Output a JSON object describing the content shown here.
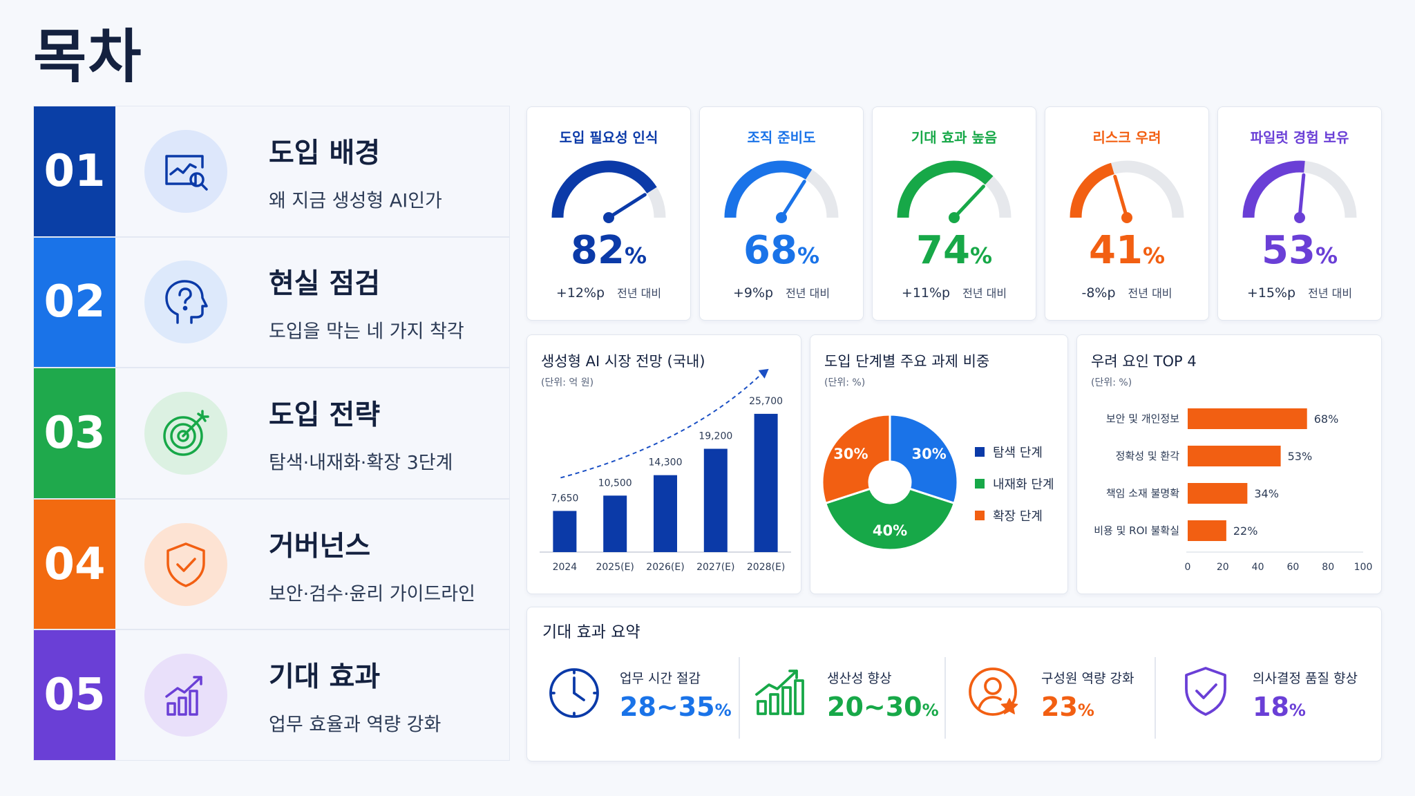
{
  "page": {
    "title": "목차"
  },
  "toc": [
    {
      "num": "01",
      "title": "도입 배경",
      "subtitle": "왜 지금 생성형 AI인가",
      "color": "#0a3fa6",
      "icon": "chart-search-icon"
    },
    {
      "num": "02",
      "title": "현실 점검",
      "subtitle": "도입을 막는 네 가지 착각",
      "color": "#1a73e8",
      "icon": "head-question-icon"
    },
    {
      "num": "03",
      "title": "도입 전략",
      "subtitle": "탐색·내재화·확장 3단계",
      "color": "#1fa94c",
      "icon": "target-icon"
    },
    {
      "num": "04",
      "title": "거버넌스",
      "subtitle": "보안·검수·윤리 가이드라인",
      "color": "#f26a10",
      "icon": "shield-check-icon"
    },
    {
      "num": "05",
      "title": "기대 효과",
      "subtitle": "업무 효율과 역량 강화",
      "color": "#6a3fd6",
      "icon": "growth-chart-icon"
    }
  ],
  "kpis": [
    {
      "label": "도입 필요성 인식",
      "value": "82",
      "unit": "%",
      "delta": "+12%p",
      "compare": "전년 대비",
      "color": "#0b3aa8",
      "level": 0.82
    },
    {
      "label": "조직 준비도",
      "value": "68",
      "unit": "%",
      "delta": "+9%p",
      "compare": "전년 대비",
      "color": "#1a73e8",
      "level": 0.68
    },
    {
      "label": "기대 효과 높음",
      "value": "74",
      "unit": "%",
      "delta": "+11%p",
      "compare": "전년 대비",
      "color": "#17a848",
      "level": 0.74
    },
    {
      "label": "리스크 우려",
      "value": "41",
      "unit": "%",
      "delta": "-8%p",
      "compare": "전년 대비",
      "color": "#f25f12",
      "level": 0.41
    },
    {
      "label": "파일럿 경험 보유",
      "value": "53",
      "unit": "%",
      "delta": "+15%p",
      "compare": "전년 대비",
      "color": "#6a3fd6",
      "level": 0.53
    }
  ],
  "market": {
    "title": "생성형 AI 시장 전망 (국내)",
    "unit": "(단위: 억 원)"
  },
  "phase": {
    "title": "도입 단계별 주요 과제 비중",
    "unit": "(단위: %)"
  },
  "concern": {
    "title": "우려 요인 TOP 4",
    "unit": "(단위: %)"
  },
  "chart_data": [
    {
      "type": "bar",
      "title": "생성형 AI 시장 전망 (국내)",
      "subtitle": "(단위: 억 원)",
      "categories": [
        "2024",
        "2025(E)",
        "2026(E)",
        "2027(E)",
        "2028(E)"
      ],
      "values": [
        7650,
        10500,
        14300,
        19200,
        25700
      ],
      "value_labels": [
        "7,650",
        "10,500",
        "14,300",
        "19,200",
        "25,700"
      ],
      "color": "#0b3aa8",
      "ylim": [
        0,
        28000
      ],
      "trend_arrow": true
    },
    {
      "type": "pie",
      "title": "도입 단계별 주요 과제 비중",
      "subtitle": "(단위: %)",
      "labels": [
        "탐색 단계",
        "내재화 단계",
        "확장 단계"
      ],
      "values": [
        30,
        40,
        30
      ],
      "value_labels": [
        "30%",
        "40%",
        "30%"
      ],
      "colors": [
        "#1a73e8",
        "#17a848",
        "#f25f12"
      ],
      "legend_colors": [
        "#0b3aa8",
        "#17a848",
        "#f25f12"
      ],
      "donut": true,
      "legend": "right"
    },
    {
      "type": "bar",
      "orientation": "horizontal",
      "title": "우려 요인 TOP 4",
      "subtitle": "(단위: %)",
      "categories": [
        "보안 및 개인정보",
        "정확성 및 환각",
        "책임 소재 불명확",
        "비용 및 ROI 불확실"
      ],
      "values": [
        68,
        53,
        34,
        22
      ],
      "value_labels": [
        "68%",
        "53%",
        "34%",
        "22%"
      ],
      "xlim": [
        0,
        100
      ],
      "xticks": [
        "0",
        "20",
        "40",
        "60",
        "80",
        "100"
      ],
      "color": "#f25f12"
    }
  ],
  "summary": {
    "title": "기대 효과 요약",
    "items": [
      {
        "label": "업무 시간 절감",
        "value": "28~35",
        "unit": "%",
        "color": "#0b3aa8",
        "icon": "clock-icon"
      },
      {
        "label": "생산성 향상",
        "value": "20~30",
        "unit": "%",
        "color": "#17a848",
        "icon": "growth-chart-icon"
      },
      {
        "label": "구성원 역량 강화",
        "value": "23",
        "unit": "%",
        "color": "#f25f12",
        "icon": "user-star-icon"
      },
      {
        "label": "의사결정 품질 향상",
        "value": "18",
        "unit": "%",
        "color": "#6a3fd6",
        "icon": "shield-check-icon"
      }
    ]
  }
}
